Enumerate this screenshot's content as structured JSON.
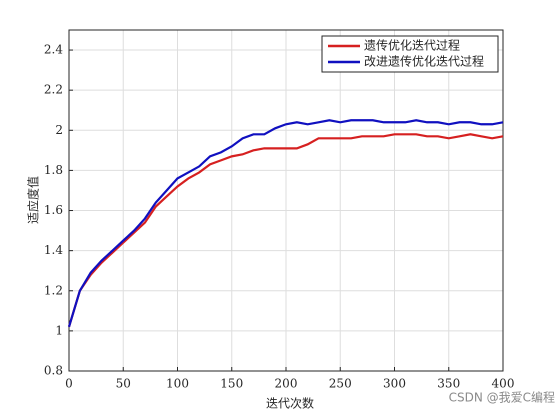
{
  "chart_data": {
    "type": "line",
    "xlabel": "迭代次数",
    "ylabel": "适应度值",
    "x": [
      0,
      10,
      20,
      30,
      40,
      50,
      60,
      70,
      80,
      90,
      100,
      110,
      120,
      130,
      140,
      150,
      160,
      170,
      180,
      190,
      200,
      210,
      220,
      230,
      240,
      250,
      260,
      270,
      280,
      290,
      300,
      310,
      320,
      330,
      340,
      350,
      360,
      370,
      380,
      390,
      400
    ],
    "series": [
      {
        "name": "遗传优化迭代过程",
        "color": "#d62020",
        "values": [
          1.02,
          1.2,
          1.28,
          1.34,
          1.39,
          1.44,
          1.49,
          1.54,
          1.62,
          1.67,
          1.72,
          1.76,
          1.79,
          1.83,
          1.85,
          1.87,
          1.88,
          1.9,
          1.91,
          1.91,
          1.91,
          1.91,
          1.93,
          1.96,
          1.96,
          1.96,
          1.96,
          1.97,
          1.97,
          1.97,
          1.98,
          1.98,
          1.98,
          1.97,
          1.97,
          1.96,
          1.97,
          1.98,
          1.97,
          1.96,
          1.97
        ]
      },
      {
        "name": "改进遗传优化迭代过程",
        "color": "#1010c0",
        "values": [
          1.02,
          1.2,
          1.29,
          1.35,
          1.4,
          1.45,
          1.5,
          1.56,
          1.64,
          1.7,
          1.76,
          1.79,
          1.82,
          1.87,
          1.89,
          1.92,
          1.96,
          1.98,
          1.98,
          2.01,
          2.03,
          2.04,
          2.03,
          2.04,
          2.05,
          2.04,
          2.05,
          2.05,
          2.05,
          2.04,
          2.04,
          2.04,
          2.05,
          2.04,
          2.04,
          2.03,
          2.04,
          2.04,
          2.03,
          2.03,
          2.04
        ]
      }
    ],
    "xlim": [
      0,
      400
    ],
    "xticks": [
      0,
      50,
      100,
      150,
      200,
      250,
      300,
      350,
      400
    ],
    "ylim": [
      0.8,
      2.5
    ],
    "yticks": [
      0.8,
      1,
      1.2,
      1.4,
      1.6,
      1.8,
      2,
      2.2,
      2.4
    ],
    "grid": true,
    "legend": "northeast",
    "watermark": "CSDN @我爱C编程"
  }
}
